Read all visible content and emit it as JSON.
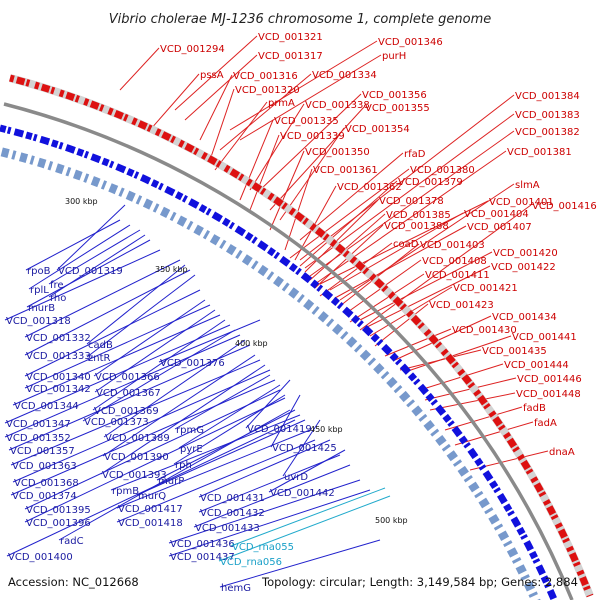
{
  "title": "Vibrio cholerae MJ-1236 chromosome 1, complete genome",
  "accession": "Accession: NC_012668",
  "summary": "Topology: circular; Length: 3,149,584 bp; Genes: 2,884",
  "colors": {
    "forward": "#dd1111",
    "reverse": "#1111dd",
    "backbone": "#8a8a8a",
    "label_red": "#cc0000",
    "label_blue": "#1a1aa0",
    "label_cyan": "#1aa0c8",
    "marker": "#22aa22"
  },
  "scale_labels": [
    "300 kbp",
    "350 kbp",
    "400 kbp",
    "450 kbp",
    "500 kbp"
  ],
  "red_labels": [
    "VCD_001294",
    "VCD_001321",
    "VCD_001346",
    "VCD_001317",
    "purH",
    "pssA",
    "VCD_001316",
    "VCD_001334",
    "VCD_001384",
    "VCD_001320",
    "VCD_001356",
    "prmA",
    "VCD_001338",
    "VCD_001355",
    "VCD_001383",
    "VCD_001335",
    "VCD_001354",
    "VCD_001382",
    "VCD_001339",
    "VCD_001350",
    "rfaD",
    "VCD_001381",
    "VCD_001361",
    "VCD_001380",
    "VCD_001362",
    "VCD_001379",
    "slmA",
    "VCD_001378",
    "VCD_001401",
    "VCD_001416",
    "VCD_001385",
    "VCD_001404",
    "VCD_001388",
    "VCD_001407",
    "coaD",
    "VCD_001403",
    "VCD_001420",
    "VCD_001408",
    "VCD_001422",
    "VCD_001411",
    "VCD_001421",
    "VCD_001423",
    "VCD_001434",
    "VCD_001430",
    "VCD_001441",
    "VCD_001435",
    "VCD_001444",
    "VCD_001446",
    "VCD_001448",
    "fadB",
    "fadA",
    "dnaA"
  ],
  "blue_labels": [
    "rpoB",
    "VCD_001319",
    "rplL",
    "fre",
    "rho",
    "murB",
    "VCD_001318",
    "VCD_001332",
    "cadB",
    "VCD_001333",
    "zntR",
    "VCD_001376",
    "VCD_001340",
    "VCD_001366",
    "VCD_001342",
    "VCD_001367",
    "VCD_001344",
    "VCD_001369",
    "VCD_001347",
    "VCD_001373",
    "VCD_001352",
    "rpmG",
    "VCD_001419",
    "VCD_001389",
    "VCD_001357",
    "pyrE",
    "VCD_001425",
    "VCD_001390",
    "VCD_001363",
    "rph",
    "VCD_001393",
    "VCD_001368",
    "uvrD",
    "murP",
    "VCD_001374",
    "rpmB",
    "murQ",
    "VCD_001431",
    "VCD_001442",
    "VCD_001395",
    "VCD_001417",
    "VCD_001432",
    "VCD_001396",
    "VCD_001418",
    "VCD_001433",
    "radC",
    "VCD_001436",
    "VCD_001400",
    "VCD_001437",
    "hemG"
  ],
  "cyan_labels": [
    "VCD_rna055",
    "VCD_rna056"
  ]
}
